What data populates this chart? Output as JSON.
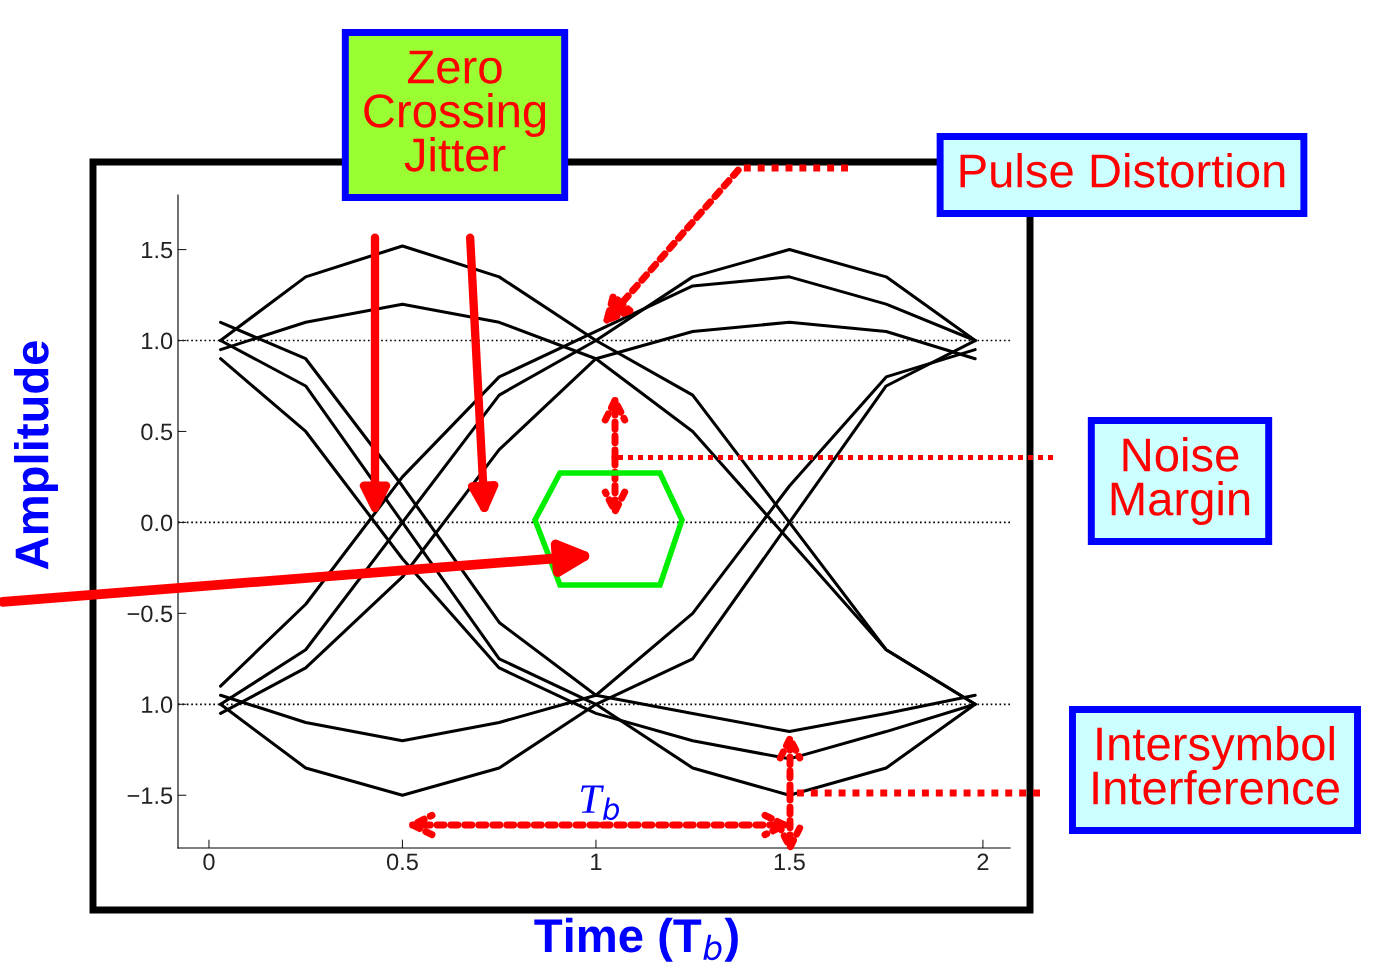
{
  "chart_data": {
    "type": "line",
    "xlabel": "Time (T$_{b}$)",
    "ylabel": "Amplitude",
    "x": [
      0.03,
      0.25,
      0.5,
      0.75,
      1.0,
      1.25,
      1.5,
      1.75,
      1.98
    ],
    "series": [
      {
        "color": "#000000",
        "values": [
          1.0,
          1.35,
          1.52,
          1.35,
          1.0,
          1.35,
          1.5,
          1.35,
          1.0
        ]
      },
      {
        "color": "#000000",
        "values": [
          -1.0,
          -1.35,
          -1.5,
          -1.35,
          -1.0,
          -1.35,
          -1.5,
          -1.35,
          -1.0
        ]
      },
      {
        "color": "#000000",
        "values": [
          1.0,
          0.75,
          0.0,
          -0.75,
          -1.0,
          -0.75,
          0.0,
          0.75,
          1.0
        ]
      },
      {
        "color": "#000000",
        "values": [
          -1.0,
          -0.7,
          0.0,
          0.7,
          1.0,
          0.7,
          0.0,
          -0.7,
          -1.0
        ]
      },
      {
        "color": "#000000",
        "values": [
          0.95,
          1.1,
          1.2,
          1.1,
          0.9,
          1.05,
          1.1,
          1.05,
          0.9
        ]
      },
      {
        "color": "#000000",
        "values": [
          -0.95,
          -1.1,
          -1.2,
          -1.1,
          -0.95,
          -1.05,
          -1.15,
          -1.05,
          -0.95
        ]
      },
      {
        "color": "#000000",
        "values": [
          0.9,
          0.5,
          -0.2,
          -0.8,
          -1.05,
          -1.2,
          -1.3,
          -1.15,
          -1.0
        ]
      },
      {
        "color": "#000000",
        "values": [
          -1.05,
          -0.8,
          -0.3,
          0.4,
          0.9,
          0.5,
          -0.1,
          -0.7,
          -1.0
        ]
      },
      {
        "color": "#000000",
        "values": [
          1.1,
          0.9,
          0.2,
          -0.55,
          -0.95,
          -0.5,
          0.2,
          0.8,
          0.95
        ]
      },
      {
        "color": "#000000",
        "values": [
          -0.9,
          -0.45,
          0.25,
          0.8,
          1.05,
          1.3,
          1.35,
          1.2,
          1.0
        ]
      }
    ],
    "xlim": [
      -0.08,
      2.07
    ],
    "ylim": [
      -1.79,
      1.8
    ],
    "xticks": [
      {
        "value": 0,
        "label": "0"
      },
      {
        "value": 0.5,
        "label": "0.5"
      },
      {
        "value": 1,
        "label": "1"
      },
      {
        "value": 1.5,
        "label": "1.5"
      },
      {
        "value": 2,
        "label": "2"
      }
    ],
    "yticks": [
      {
        "value": 1.5,
        "label": "1.5"
      },
      {
        "value": 1.0,
        "label": "1.0"
      },
      {
        "value": 0.5,
        "label": "0.5"
      },
      {
        "value": 0.0,
        "label": "0.0"
      },
      {
        "value": -0.5,
        "label": "−0.5"
      },
      {
        "value": -1.0,
        "label": "1.0"
      },
      {
        "value": -1.5,
        "label": "−1.5"
      }
    ],
    "ref_lines": [
      {
        "axis": "y",
        "value": 1.0,
        "color": "#000000",
        "line_style": "dotted"
      },
      {
        "axis": "y",
        "value": 0.0,
        "color": "#000000",
        "line_style": "dotted"
      },
      {
        "axis": "y",
        "value": -1.0,
        "color": "#000000",
        "line_style": "dotted"
      }
    ],
    "annotations": [
      "Zero\nCrossing\nJitter",
      "Pulse Distortion",
      "Noise\nMargin",
      "Intersymbol\nInterference",
      "T$_{b}$"
    ],
    "grid": false,
    "marker": "none",
    "line_style": "solid"
  }
}
